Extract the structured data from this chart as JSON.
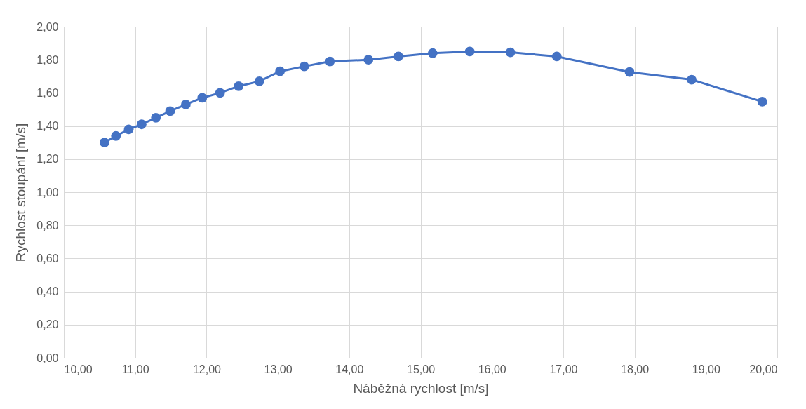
{
  "chart_data": {
    "type": "line",
    "xlabel": "Náběžná rychlost [m/s]",
    "ylabel": "Rychlost stoupání [m/s]",
    "x": [
      10.57,
      10.73,
      10.91,
      11.09,
      11.29,
      11.49,
      11.71,
      11.94,
      12.19,
      12.45,
      12.74,
      13.03,
      13.37,
      13.73,
      14.27,
      14.69,
      15.17,
      15.69,
      16.26,
      16.91,
      17.93,
      18.8,
      19.79
    ],
    "series": [
      {
        "color": "#4472c4",
        "values": [
          1.3,
          1.34,
          1.38,
          1.41,
          1.45,
          1.49,
          1.53,
          1.57,
          1.6,
          1.64,
          1.67,
          1.73,
          1.76,
          1.79,
          1.8,
          1.82,
          1.84,
          1.85,
          1.845,
          1.82,
          1.726,
          1.68,
          1.547
        ]
      }
    ],
    "xlim": [
      10,
      20
    ],
    "xticks": [
      {
        "value": 10,
        "label": "10,00"
      },
      {
        "value": 11,
        "label": "11,00"
      },
      {
        "value": 12,
        "label": "12,00"
      },
      {
        "value": 13,
        "label": "13,00"
      },
      {
        "value": 14,
        "label": "14,00"
      },
      {
        "value": 15,
        "label": "15,00"
      },
      {
        "value": 16,
        "label": "16,00"
      },
      {
        "value": 17,
        "label": "17,00"
      },
      {
        "value": 18,
        "label": "18,00"
      },
      {
        "value": 19,
        "label": "19,00"
      },
      {
        "value": 20,
        "label": "20,00"
      }
    ],
    "ylim": [
      0,
      2
    ],
    "yticks": [
      {
        "value": 0,
        "label": "0,00"
      },
      {
        "value": 0.2,
        "label": "0,20"
      },
      {
        "value": 0.4,
        "label": "0,40"
      },
      {
        "value": 0.6,
        "label": "0,60"
      },
      {
        "value": 0.8,
        "label": "0,80"
      },
      {
        "value": 1.0,
        "label": "1,00"
      },
      {
        "value": 1.2,
        "label": "1,20"
      },
      {
        "value": 1.4,
        "label": "1,40"
      },
      {
        "value": 1.6,
        "label": "1,60"
      },
      {
        "value": 1.8,
        "label": "1,80"
      },
      {
        "value": 2.0,
        "label": "2,00"
      }
    ],
    "grid": true,
    "marker": "circle",
    "line_style": "solid"
  }
}
